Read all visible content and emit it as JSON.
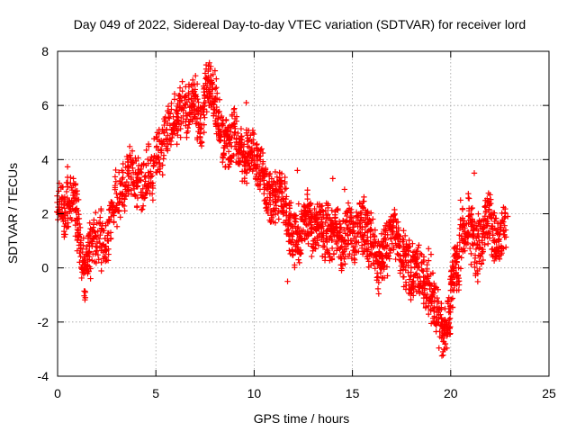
{
  "chart_data": {
    "type": "scatter",
    "title": "Day 049 of 2022, Sidereal Day-to-day VTEC variation (SDTVAR) for receiver lord",
    "xlabel": "GPS time / hours",
    "ylabel": "SDTVAR / TECUs",
    "xlim": [
      0,
      25
    ],
    "ylim": [
      -4,
      8
    ],
    "xticks": [
      0,
      5,
      10,
      15,
      20,
      25
    ],
    "yticks": [
      -4,
      -2,
      0,
      2,
      4,
      6,
      8
    ],
    "grid": true,
    "marker": "+",
    "series": [
      {
        "name": "SDTVAR",
        "color": "#ff0000",
        "trend": [
          [
            0.0,
            2.6
          ],
          [
            0.3,
            2.0
          ],
          [
            0.6,
            2.5
          ],
          [
            0.9,
            2.7
          ],
          [
            1.1,
            1.2
          ],
          [
            1.4,
            -0.4
          ],
          [
            1.7,
            1.0
          ],
          [
            2.1,
            1.2
          ],
          [
            2.5,
            0.8
          ],
          [
            2.8,
            2.4
          ],
          [
            3.2,
            2.8
          ],
          [
            3.6,
            3.6
          ],
          [
            4.0,
            3.3
          ],
          [
            4.4,
            3.2
          ],
          [
            4.8,
            3.6
          ],
          [
            5.2,
            4.3
          ],
          [
            5.6,
            4.9
          ],
          [
            6.0,
            5.4
          ],
          [
            6.3,
            5.8
          ],
          [
            6.7,
            5.8
          ],
          [
            7.0,
            6.1
          ],
          [
            7.3,
            5.2
          ],
          [
            7.6,
            6.8
          ],
          [
            7.9,
            6.5
          ],
          [
            8.2,
            5.4
          ],
          [
            8.5,
            4.5
          ],
          [
            8.8,
            4.6
          ],
          [
            9.1,
            5.0
          ],
          [
            9.4,
            3.9
          ],
          [
            9.7,
            4.2
          ],
          [
            10.0,
            4.0
          ],
          [
            10.3,
            3.7
          ],
          [
            10.6,
            2.9
          ],
          [
            10.9,
            2.3
          ],
          [
            11.2,
            2.8
          ],
          [
            11.5,
            2.6
          ],
          [
            11.8,
            1.5
          ],
          [
            12.1,
            1.0
          ],
          [
            12.4,
            1.4
          ],
          [
            12.7,
            1.9
          ],
          [
            13.0,
            1.2
          ],
          [
            13.3,
            1.7
          ],
          [
            13.6,
            1.3
          ],
          [
            13.9,
            1.2
          ],
          [
            14.2,
            1.5
          ],
          [
            14.5,
            0.8
          ],
          [
            14.8,
            1.6
          ],
          [
            15.1,
            1.0
          ],
          [
            15.4,
            1.8
          ],
          [
            15.7,
            1.3
          ],
          [
            16.0,
            0.8
          ],
          [
            16.3,
            0.3
          ],
          [
            16.6,
            0.5
          ],
          [
            16.9,
            0.9
          ],
          [
            17.2,
            1.3
          ],
          [
            17.5,
            0.7
          ],
          [
            17.8,
            0.2
          ],
          [
            18.1,
            -0.3
          ],
          [
            18.4,
            0.0
          ],
          [
            18.7,
            -0.6
          ],
          [
            19.0,
            -1.0
          ],
          [
            19.3,
            -1.5
          ],
          [
            19.6,
            -2.6
          ],
          [
            19.9,
            -1.8
          ],
          [
            20.1,
            -0.4
          ],
          [
            20.4,
            0.5
          ],
          [
            20.7,
            1.3
          ],
          [
            21.0,
            1.8
          ],
          [
            21.3,
            0.6
          ],
          [
            21.6,
            1.2
          ],
          [
            21.9,
            2.0
          ],
          [
            22.2,
            1.2
          ],
          [
            22.5,
            1.0
          ],
          [
            22.8,
            1.6
          ]
        ],
        "outliers": [
          [
            9.6,
            6.1
          ],
          [
            14.0,
            3.3
          ],
          [
            14.6,
            2.9
          ],
          [
            12.2,
            3.6
          ],
          [
            21.2,
            3.5
          ],
          [
            22.0,
            2.7
          ],
          [
            22.9,
            1.9
          ],
          [
            22.8,
            1.4
          ],
          [
            19.6,
            -3.1
          ],
          [
            11.7,
            -0.5
          ],
          [
            7.8,
            7.1
          ],
          [
            7.6,
            7.0
          ],
          [
            13.2,
            1.6
          ],
          [
            20.5,
            2.5
          ],
          [
            19.0,
            0.5
          ]
        ]
      }
    ]
  }
}
